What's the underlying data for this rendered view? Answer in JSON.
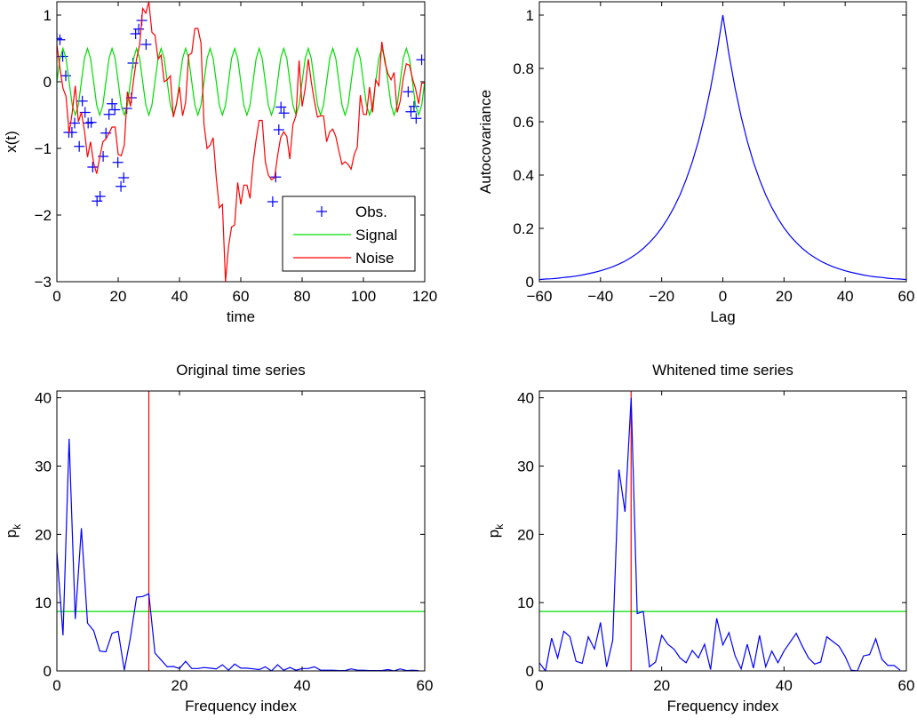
{
  "chart_data": [
    {
      "type": "line",
      "title": "",
      "xlabel": "time",
      "ylabel": "x(t)",
      "xlim": [
        0,
        120
      ],
      "ylim": [
        -3,
        1.2
      ],
      "xticks": [
        0,
        20,
        40,
        60,
        80,
        100,
        120
      ],
      "yticks": [
        -3,
        -2,
        -1,
        0,
        1
      ],
      "legend": {
        "placement": "bottom-right",
        "entries": [
          "Obs.",
          "Signal",
          "Noise"
        ]
      },
      "series": [
        {
          "name": "Obs.",
          "kind": "scatter",
          "marker": "+",
          "color": "#0000ff",
          "x": [
            0,
            1,
            1.9,
            2.9,
            3.9,
            4.9,
            5.8,
            7.3,
            8.3,
            9.2,
            10.2,
            11.2,
            11.7,
            13.1,
            14.1,
            15.1,
            16,
            17,
            18,
            18.9,
            19.9,
            20.9,
            21.8,
            22.8,
            24.3,
            24.8,
            25.7,
            26.7,
            27.7,
            29.1,
            70.4,
            71.4,
            72.4,
            73.1,
            74.1,
            114.6,
            115.5,
            116.5,
            117.2,
            119
          ],
          "y": [
            0.65,
            0.63,
            0.38,
            0.09,
            -0.76,
            -0.76,
            -0.62,
            -0.97,
            -0.29,
            -0.46,
            -0.62,
            -0.61,
            -1.28,
            -1.79,
            -1.72,
            -1.12,
            -0.77,
            -0.49,
            -0.33,
            -0.42,
            -1.21,
            -1.57,
            -1.44,
            -0.4,
            -0.24,
            0.28,
            0.72,
            0.79,
            0.92,
            0.56,
            -1.8,
            -1.43,
            -0.72,
            -0.38,
            -0.47,
            -0.15,
            -0.45,
            -0.37,
            -0.55,
            0.33
          ]
        },
        {
          "name": "Signal",
          "kind": "line",
          "color": "#00dd00",
          "x0": 0,
          "dx": 1,
          "y": [
            0,
            0.35,
            0.5,
            0.35,
            0,
            -0.35,
            -0.5,
            -0.35,
            0,
            0.35,
            0.5,
            0.35,
            0,
            -0.35,
            -0.5,
            -0.35,
            0,
            0.35,
            0.5,
            0.35,
            0,
            -0.35,
            -0.5,
            -0.35,
            0,
            0.35,
            0.5,
            0.35,
            0,
            -0.35,
            -0.5,
            -0.35,
            0,
            0.35,
            0.5,
            0.35,
            0,
            -0.35,
            -0.5,
            -0.35,
            0,
            0.35,
            0.5,
            0.35,
            0,
            -0.35,
            -0.5,
            -0.35,
            0,
            0.35,
            0.5,
            0.35,
            0,
            -0.35,
            -0.5,
            -0.35,
            0,
            0.35,
            0.5,
            0.35,
            0,
            -0.35,
            -0.5,
            -0.35,
            0,
            0.35,
            0.5,
            0.35,
            0,
            -0.35,
            -0.5,
            -0.35,
            0,
            0.35,
            0.5,
            0.35,
            0,
            -0.35,
            -0.5,
            -0.35,
            0,
            0.35,
            0.5,
            0.35,
            0,
            -0.35,
            -0.5,
            -0.35,
            0,
            0.35,
            0.5,
            0.35,
            0,
            -0.35,
            -0.5,
            -0.35,
            0,
            0.35,
            0.5,
            0.35,
            0,
            -0.35,
            -0.5,
            -0.35,
            0,
            0.35,
            0.5,
            0.35,
            0,
            -0.35,
            -0.5,
            -0.35,
            0,
            0.35,
            0.5,
            0.35,
            0,
            -0.35,
            -0.5,
            -0.35,
            0
          ]
        },
        {
          "name": "Noise",
          "kind": "line",
          "color": "#ff0000",
          "x0": 0,
          "dx": 1,
          "y": [
            0.56,
            0.2,
            -0.1,
            -0.22,
            -0.77,
            -0.46,
            -0.06,
            -0.6,
            -0.46,
            -0.73,
            -1.13,
            -0.9,
            -1.22,
            -1.38,
            -1.13,
            -0.9,
            -0.86,
            -0.77,
            -0.68,
            -0.68,
            -1.09,
            -1.11,
            -0.95,
            -0.15,
            -0.37,
            0.03,
            0.34,
            0.56,
            1.1,
            1.03,
            1.2,
            0.74,
            0.7,
            0.34,
            0.4,
            0,
            0.03,
            0.09,
            -0.53,
            -0.33,
            -0.08,
            -0.51,
            -0.31,
            0.4,
            0.43,
            0.8,
            0.8,
            0.58,
            -0.64,
            -1.0,
            -0.95,
            -0.84,
            -1.44,
            -1.89,
            -1.84,
            -3.0,
            -2.47,
            -2.18,
            -2.15,
            -1.51,
            -1.84,
            -1.55,
            -1.55,
            -1.75,
            -1.22,
            -0.86,
            -0.58,
            -0.58,
            -1.2,
            -1.4,
            -1.47,
            -1.44,
            -1.11,
            -0.84,
            -0.75,
            -0.82,
            -1.16,
            -0.64,
            -0.51,
            0.32,
            -0.37,
            -0.1,
            0.34,
            0,
            -0.29,
            -0.53,
            -0.51,
            -0.51,
            -0.9,
            -0.75,
            -0.71,
            -0.82,
            -1.04,
            -1.24,
            -1.2,
            -1.24,
            -1.31,
            -1.09,
            -0.98,
            -0.2,
            -0.49,
            -0.49,
            -0.08,
            -0.46,
            0.03,
            -0.06,
            0.6,
            0.29,
            0.12,
            0.03,
            0.14,
            -0.46,
            -0.29,
            0.05,
            0.27,
            0.25,
            0.05,
            -0.1,
            -0.33,
            -0.02,
            -0.02
          ]
        }
      ]
    },
    {
      "type": "line",
      "title": "",
      "xlabel": "Lag",
      "ylabel": "Autocovariance",
      "xlim": [
        -60,
        60
      ],
      "ylim": [
        0,
        1.05
      ],
      "xticks": [
        -60,
        -40,
        -20,
        0,
        20,
        40,
        60
      ],
      "yticks": [
        0,
        0.2,
        0.4,
        0.6,
        0.8,
        1
      ],
      "series": [
        {
          "name": "Autocovariance",
          "kind": "line",
          "color": "#0000ff",
          "x0": -60,
          "dx": 2,
          "y": [
            0.008,
            0.01,
            0.011,
            0.013,
            0.016,
            0.018,
            0.021,
            0.025,
            0.03,
            0.035,
            0.041,
            0.048,
            0.056,
            0.066,
            0.077,
            0.091,
            0.106,
            0.125,
            0.147,
            0.172,
            0.202,
            0.237,
            0.278,
            0.326,
            0.383,
            0.449,
            0.527,
            0.619,
            0.726,
            0.852,
            1,
            0.852,
            0.726,
            0.619,
            0.527,
            0.449,
            0.383,
            0.326,
            0.278,
            0.237,
            0.202,
            0.172,
            0.147,
            0.125,
            0.106,
            0.091,
            0.077,
            0.066,
            0.056,
            0.048,
            0.041,
            0.035,
            0.03,
            0.025,
            0.021,
            0.018,
            0.016,
            0.013,
            0.011,
            0.01,
            0.008
          ]
        }
      ]
    },
    {
      "type": "line",
      "title": "Original time series",
      "xlabel": "Frequency index",
      "ylabel": "p",
      "ylabel_sub": "k",
      "xlim": [
        0,
        60
      ],
      "ylim": [
        0,
        41
      ],
      "xticks": [
        0,
        20,
        40,
        60
      ],
      "yticks": [
        0,
        10,
        20,
        30,
        40
      ],
      "vline": {
        "x": 15,
        "color": "#ff0000"
      },
      "hline": {
        "y": 8.7,
        "color": "#00dd00"
      },
      "series": [
        {
          "name": "p_k",
          "kind": "line",
          "color": "#0000ff",
          "x0": 0,
          "dx": 1,
          "y": [
            17.4,
            5.2,
            34,
            7.6,
            20.9,
            7,
            5.9,
            2.9,
            2.8,
            5.5,
            5.8,
            0.1,
            4.9,
            10.8,
            10.9,
            11.3,
            2.6,
            1.6,
            0.6,
            0.65,
            0.35,
            1.4,
            0.35,
            0.35,
            0.5,
            0.4,
            0.3,
            0.9,
            0.1,
            1.0,
            0.4,
            0.4,
            0.3,
            0.2,
            0.6,
            0,
            0.9,
            0.1,
            0.5,
            0.1,
            0.35,
            0.35,
            0.6,
            0.1,
            0.1,
            0.1,
            0.05,
            0.05,
            0.3,
            0.1,
            0.1,
            0.05,
            0.05,
            0.05,
            0.2,
            0,
            0.3,
            0.05,
            0.1,
            0.05
          ]
        }
      ]
    },
    {
      "type": "line",
      "title": "Whitened time series",
      "xlabel": "Frequency index",
      "ylabel": "p",
      "ylabel_sub": "k",
      "xlim": [
        0,
        60
      ],
      "ylim": [
        0,
        41
      ],
      "xticks": [
        0,
        20,
        40,
        60
      ],
      "yticks": [
        0,
        10,
        20,
        30,
        40
      ],
      "vline": {
        "x": 15,
        "color": "#ff0000"
      },
      "hline": {
        "y": 8.7,
        "color": "#00dd00"
      },
      "series": [
        {
          "name": "p_k",
          "kind": "line",
          "color": "#0000ff",
          "x0": 0,
          "dx": 1,
          "y": [
            1.2,
            0,
            4.8,
            1.9,
            5.8,
            5.0,
            1.4,
            1.1,
            5.0,
            3.2,
            7.1,
            0.6,
            4.5,
            29.5,
            23.3,
            40,
            8.4,
            8.7,
            0.6,
            1.3,
            5.2,
            3.9,
            3.2,
            1.9,
            1.2,
            3.0,
            1.9,
            3.9,
            0.2,
            7.7,
            3.8,
            5.6,
            2.2,
            0.3,
            3.9,
            0.4,
            5.2,
            0.6,
            2.9,
            1.2,
            2.9,
            4.2,
            5.5,
            3.6,
            1.9,
            1.0,
            1.3,
            5.0,
            4.3,
            3.6,
            2.1,
            0.1,
            0,
            2.2,
            2.4,
            4.7,
            1.7,
            0.8,
            0.8,
            0.1
          ]
        }
      ]
    }
  ]
}
